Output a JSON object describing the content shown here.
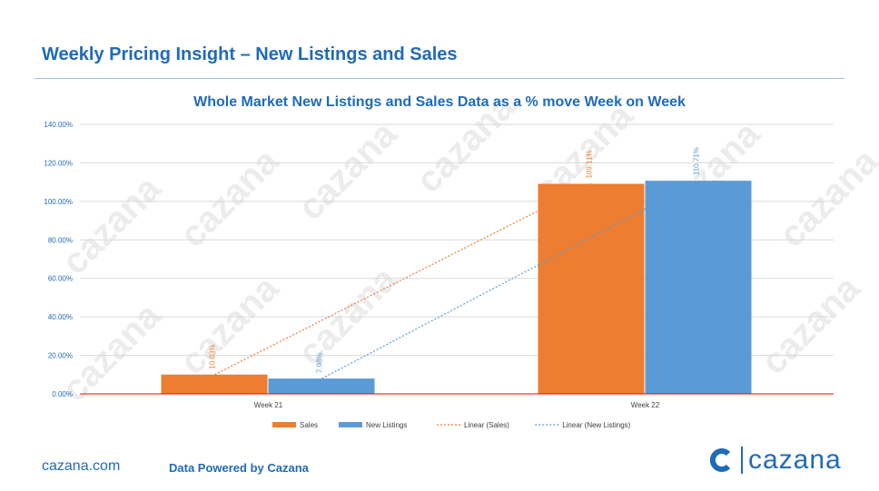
{
  "page": {
    "title": "Weekly Pricing Insight – New Listings and Sales",
    "footer_url": "cazana.com",
    "footer_powered": "Data Powered by Cazana",
    "logo_text": "cazana",
    "watermark_text": "cazana",
    "icon": "cazana-logo-icon"
  },
  "colors": {
    "title": "#1f6bb8",
    "sales": "#ed7d31",
    "new_listings": "#5b9bd5",
    "zero_line": "#ff0000",
    "gridline": "#d9d9d9"
  },
  "chart_data": {
    "type": "bar",
    "title": "Whole Market New Listings and Sales Data as a % move Week on Week",
    "categories": [
      "Week 21",
      "Week 22"
    ],
    "series": [
      {
        "name": "Sales",
        "values": [
          10.03,
          109.11
        ],
        "labels": [
          "10.03%",
          "109.11%"
        ],
        "color": "#ed7d31"
      },
      {
        "name": "New Listings",
        "values": [
          7.98,
          110.71
        ],
        "labels": [
          "7.98%",
          "110.71%"
        ],
        "color": "#5b9bd5"
      }
    ],
    "trendlines": [
      {
        "name": "Linear (Sales)",
        "of": "Sales",
        "color": "#ed7d31"
      },
      {
        "name": "Linear (New Listings)",
        "of": "New Listings",
        "color": "#5b9bd5"
      }
    ],
    "ylim": [
      0,
      140
    ],
    "yticks": [
      "0.00%",
      "20.00%",
      "40.00%",
      "60.00%",
      "80.00%",
      "100.00%",
      "120.00%",
      "140.00%"
    ],
    "ytick_values": [
      0,
      20,
      40,
      60,
      80,
      100,
      120,
      140
    ],
    "grid": true,
    "legend_placement": "bottom"
  }
}
